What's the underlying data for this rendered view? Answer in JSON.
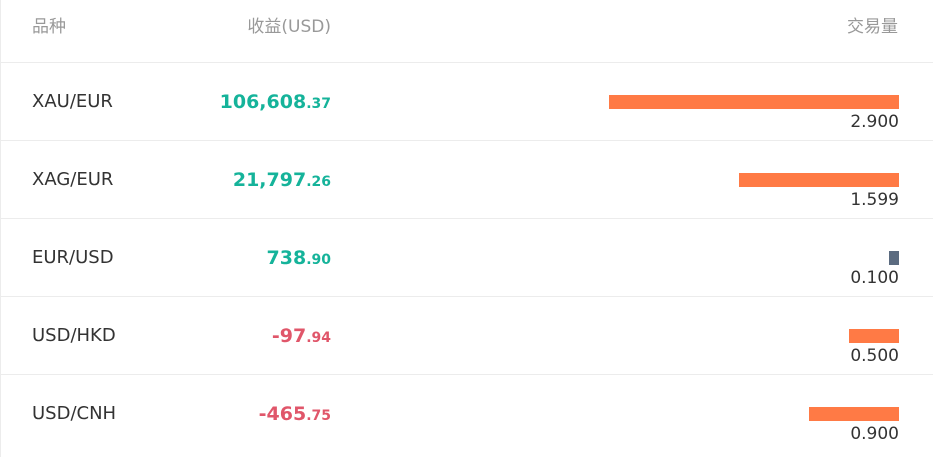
{
  "header": {
    "symbol": "品种",
    "profit": "收益(USD)",
    "volume": "交易量"
  },
  "rows": [
    {
      "symbol": "XAU/EUR",
      "profit_main": "106,608",
      "profit_fraction": ".37",
      "trend": "up",
      "volume": {
        "value": 2.9,
        "label": "2.900"
      },
      "bar_color": "#ff7a45"
    },
    {
      "symbol": "XAG/EUR",
      "profit_main": "21,797",
      "profit_fraction": ".26",
      "trend": "up",
      "volume": {
        "value": 1.599,
        "label": "1.599"
      },
      "bar_color": "#ff7a45"
    },
    {
      "symbol": "EUR/USD",
      "profit_main": "738",
      "profit_fraction": ".90",
      "trend": "up",
      "volume": {
        "value": 0.1,
        "label": "0.100"
      },
      "bar_color": "#5b6b80"
    },
    {
      "symbol": "USD/HKD",
      "profit_main": "-97",
      "profit_fraction": ".94",
      "trend": "down",
      "volume": {
        "value": 0.5,
        "label": "0.500"
      },
      "bar_color": "#ff7a45"
    },
    {
      "symbol": "USD/CNH",
      "profit_main": "-465",
      "profit_fraction": ".75",
      "trend": "down",
      "volume": {
        "value": 0.9,
        "label": "0.900"
      },
      "bar_color": "#ff7a45"
    }
  ]
}
